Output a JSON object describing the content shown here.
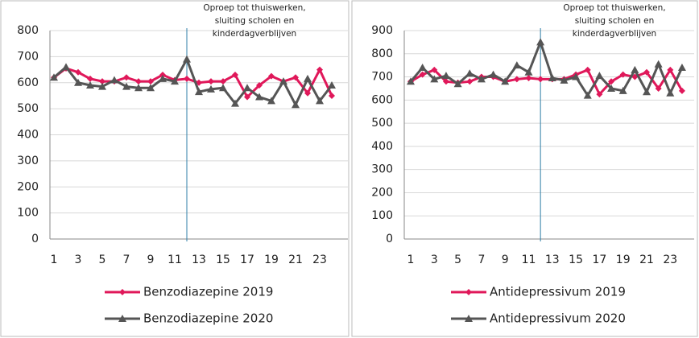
{
  "chart_data": [
    {
      "type": "line",
      "annotation": [
        "Oproep tot thuiswerken,",
        "sluiting scholen en",
        "kinderdagverblijven"
      ],
      "categories": [
        "1",
        null,
        "3",
        null,
        "5",
        null,
        "7",
        null,
        "9",
        null,
        "11",
        null,
        "13",
        null,
        "15",
        null,
        "17",
        null,
        "19",
        null,
        "21",
        null,
        "23",
        null
      ],
      "series": [
        {
          "name": "Benzodiazepine 2019",
          "color": "#e0185a",
          "marker": "diamond",
          "values": [
            620,
            655,
            640,
            615,
            605,
            605,
            620,
            605,
            605,
            630,
            610,
            615,
            600,
            605,
            605,
            630,
            545,
            590,
            625,
            605,
            620,
            560,
            650,
            550
          ]
        },
        {
          "name": "Benzodiazepine 2020",
          "color": "#555555",
          "marker": "triangle",
          "values": [
            620,
            660,
            600,
            590,
            585,
            610,
            585,
            580,
            580,
            615,
            605,
            690,
            565,
            575,
            580,
            520,
            580,
            545,
            530,
            605,
            515,
            615,
            530,
            590
          ]
        }
      ],
      "ylim": [
        0,
        800
      ],
      "yticks": [
        0,
        100,
        200,
        300,
        400,
        500,
        600,
        700,
        800
      ],
      "grid": true
    },
    {
      "type": "line",
      "annotation": [
        "Oproep tot thuiswerken,",
        "sluiting scholen en",
        "kinderdagverblijven"
      ],
      "categories": [
        "1",
        null,
        "3",
        null,
        "5",
        null,
        "7",
        null,
        "9",
        null,
        "11",
        null,
        "13",
        null,
        "15",
        null,
        "17",
        null,
        "19",
        null,
        "21",
        null,
        "23",
        null
      ],
      "series": [
        {
          "name": "Antidepressivum 2019",
          "color": "#e0185a",
          "marker": "diamond",
          "values": [
            680,
            710,
            730,
            680,
            675,
            680,
            700,
            700,
            680,
            690,
            695,
            690,
            690,
            690,
            710,
            730,
            625,
            680,
            710,
            700,
            720,
            650,
            730,
            640
          ]
        },
        {
          "name": "Antidepressivum 2020",
          "color": "#555555",
          "marker": "triangle",
          "values": [
            680,
            740,
            690,
            705,
            670,
            715,
            690,
            710,
            680,
            750,
            720,
            850,
            695,
            685,
            700,
            620,
            705,
            650,
            640,
            730,
            635,
            755,
            630,
            740
          ]
        }
      ],
      "ylim": [
        0,
        900
      ],
      "yticks": [
        0,
        100,
        200,
        300,
        400,
        500,
        600,
        700,
        800,
        900
      ],
      "grid": true
    }
  ]
}
